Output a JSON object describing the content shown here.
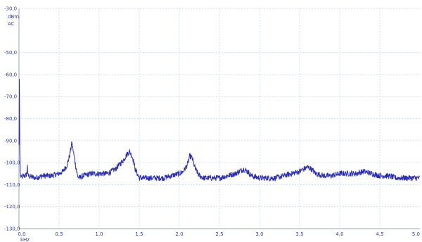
{
  "chart_data": {
    "type": "line",
    "title": "",
    "xlabel": "",
    "ylabel": "",
    "x_unit": "kHz",
    "y_unit_lines": [
      "dBm",
      "AC"
    ],
    "xlim": [
      0.0,
      5.0
    ],
    "ylim": [
      -130.0,
      -30.0
    ],
    "x_ticks": [
      "0,0",
      "0,5",
      "1,0",
      "1,5",
      "2,0",
      "2,5",
      "3,0",
      "3,5",
      "4,0",
      "4,5",
      "5,0"
    ],
    "y_ticks": [
      "-30,0",
      "-50,0",
      "-60,0",
      "-70,0",
      "-80,0",
      "-90,0",
      "-100,0",
      "-110,0",
      "-120,0",
      "-130,0"
    ],
    "grid": true,
    "line_color": "#2b2fb8",
    "grid_color": "#cfe0ef",
    "tick_color": "#2f3a9a",
    "series": [
      {
        "x": [
          0.0,
          0.005,
          0.01,
          0.015,
          0.02,
          0.03,
          0.05,
          0.08,
          0.1,
          0.105,
          0.11,
          0.2,
          0.3,
          0.4,
          0.5,
          0.55,
          0.6,
          0.63,
          0.66,
          0.7,
          0.73,
          0.75,
          0.8,
          0.9,
          1.0,
          1.1,
          1.2,
          1.25,
          1.3,
          1.35,
          1.38,
          1.42,
          1.45,
          1.5,
          1.6,
          1.7,
          1.8,
          1.9,
          2.0,
          2.05,
          2.1,
          2.13,
          2.16,
          2.2,
          2.25,
          2.3,
          2.4,
          2.5,
          2.6,
          2.7,
          2.75,
          2.8,
          2.85,
          2.9,
          3.0,
          3.1,
          3.2,
          3.3,
          3.4,
          3.5,
          3.55,
          3.6,
          3.65,
          3.7,
          3.8,
          3.9,
          4.0,
          4.1,
          4.2,
          4.3,
          4.4,
          4.5,
          4.6,
          4.7,
          4.8,
          4.9,
          5.0
        ],
        "y": [
          -92,
          -62,
          -95,
          -104,
          -106,
          -107,
          -106,
          -106,
          -105,
          -100,
          -106,
          -107,
          -106,
          -106,
          -105,
          -104,
          -101,
          -97,
          -91,
          -100,
          -106,
          -107,
          -106,
          -105,
          -105,
          -105,
          -103,
          -101,
          -99,
          -96,
          -95,
          -98,
          -103,
          -107,
          -107,
          -107,
          -107,
          -106,
          -105,
          -104,
          -101,
          -97,
          -98,
          -103,
          -106,
          -107,
          -107,
          -107,
          -106,
          -105,
          -104,
          -103,
          -104,
          -106,
          -107,
          -107,
          -107,
          -106,
          -105,
          -104,
          -103,
          -102,
          -103,
          -105,
          -106,
          -106,
          -105,
          -105,
          -105,
          -104,
          -105,
          -106,
          -106,
          -107,
          -107,
          -107,
          -107
        ]
      }
    ]
  }
}
